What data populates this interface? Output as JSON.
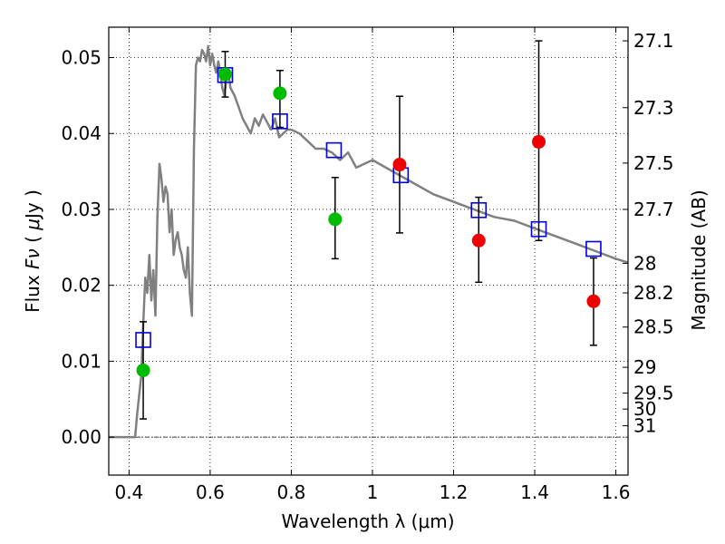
{
  "chart_data": {
    "type": "scatter",
    "xlabel": "Wavelength  λ (μm)",
    "ylabel": "Flux  Fν  ( μJy )",
    "ylabel_right": "Magnitude (AB)",
    "xlim": [
      0.35,
      1.63
    ],
    "ylim": [
      -0.005,
      0.054
    ],
    "x_ticks": [
      {
        "value": 0.4,
        "label": "0.4"
      },
      {
        "value": 0.6,
        "label": "0.6"
      },
      {
        "value": 0.8,
        "label": "0.8"
      },
      {
        "value": 1.0,
        "label": "1"
      },
      {
        "value": 1.2,
        "label": "1.2"
      },
      {
        "value": 1.4,
        "label": "1.4"
      },
      {
        "value": 1.6,
        "label": "1.6"
      }
    ],
    "y_ticks": [
      {
        "value": 0.0,
        "label": "0.00"
      },
      {
        "value": 0.01,
        "label": "0.01"
      },
      {
        "value": 0.02,
        "label": "0.02"
      },
      {
        "value": 0.03,
        "label": "0.03"
      },
      {
        "value": 0.04,
        "label": "0.04"
      },
      {
        "value": 0.05,
        "label": "0.05"
      }
    ],
    "right_ticks": [
      {
        "flux": 0.0522,
        "label": "27.1"
      },
      {
        "flux": 0.0434,
        "label": "27.3"
      },
      {
        "flux": 0.0361,
        "label": "27.5"
      },
      {
        "flux": 0.03,
        "label": "27.7"
      },
      {
        "flux": 0.0229,
        "label": "28"
      },
      {
        "flux": 0.019,
        "label": "28.2"
      },
      {
        "flux": 0.0145,
        "label": "28.5"
      },
      {
        "flux": 0.0092,
        "label": "29"
      },
      {
        "flux": 0.0058,
        "label": "29.5"
      },
      {
        "flux": 0.0037,
        "label": "30"
      },
      {
        "flux": 0.0015,
        "label": "31"
      }
    ],
    "grid": true,
    "colors": {
      "model": "#808080",
      "green": "#00bb00",
      "red": "#ee0000",
      "square": "#0000dd",
      "errorbar": "#000000"
    },
    "series": [
      {
        "kind": "model_sed",
        "x": [
          0.35,
          0.41,
          0.415,
          0.42,
          0.43,
          0.435,
          0.44,
          0.445,
          0.45,
          0.455,
          0.46,
          0.465,
          0.47,
          0.475,
          0.48,
          0.485,
          0.49,
          0.495,
          0.5,
          0.505,
          0.51,
          0.515,
          0.52,
          0.525,
          0.53,
          0.535,
          0.54,
          0.545,
          0.55,
          0.555,
          0.56,
          0.565,
          0.57,
          0.575,
          0.58,
          0.585,
          0.59,
          0.595,
          0.6,
          0.605,
          0.61,
          0.615,
          0.62,
          0.625,
          0.63,
          0.635,
          0.64,
          0.645,
          0.65,
          0.66,
          0.67,
          0.68,
          0.69,
          0.7,
          0.71,
          0.72,
          0.73,
          0.74,
          0.75,
          0.76,
          0.77,
          0.78,
          0.79,
          0.8,
          0.82,
          0.84,
          0.86,
          0.88,
          0.9,
          0.92,
          0.94,
          0.96,
          0.98,
          1.0,
          1.05,
          1.1,
          1.15,
          1.2,
          1.25,
          1.3,
          1.35,
          1.4,
          1.45,
          1.5,
          1.55,
          1.6,
          1.63
        ],
        "y": [
          0.0,
          0.0,
          0.0,
          0.003,
          0.008,
          0.015,
          0.021,
          0.019,
          0.024,
          0.018,
          0.022,
          0.016,
          0.029,
          0.036,
          0.034,
          0.031,
          0.033,
          0.032,
          0.027,
          0.03,
          0.024,
          0.026,
          0.027,
          0.025,
          0.024,
          0.022,
          0.021,
          0.025,
          0.019,
          0.016,
          0.038,
          0.049,
          0.05,
          0.0495,
          0.051,
          0.0505,
          0.0495,
          0.0515,
          0.049,
          0.0505,
          0.049,
          0.048,
          0.0495,
          0.048,
          0.046,
          0.045,
          0.047,
          0.048,
          0.046,
          0.045,
          0.0435,
          0.042,
          0.041,
          0.04,
          0.042,
          0.041,
          0.0425,
          0.0415,
          0.0405,
          0.042,
          0.0395,
          0.04,
          0.0405,
          0.0405,
          0.04,
          0.039,
          0.038,
          0.038,
          0.0375,
          0.0365,
          0.0375,
          0.0355,
          0.036,
          0.0365,
          0.035,
          0.0335,
          0.032,
          0.031,
          0.03,
          0.029,
          0.0285,
          0.0275,
          0.0265,
          0.0255,
          0.0245,
          0.0235,
          0.023
        ]
      },
      {
        "kind": "squares",
        "x": [
          0.435,
          0.637,
          0.772,
          0.905,
          1.07,
          1.262,
          1.41,
          1.545
        ],
        "y": [
          0.0128,
          0.0477,
          0.0416,
          0.0378,
          0.0345,
          0.0299,
          0.0274,
          0.0248
        ]
      },
      {
        "kind": "green_points",
        "x": [
          0.435,
          0.637,
          0.772,
          0.908
        ],
        "y": [
          0.0088,
          0.0478,
          0.0453,
          0.0287
        ],
        "yerr_low": [
          0.0064,
          0.003,
          0.0045,
          0.0052
        ],
        "yerr_high": [
          0.0064,
          0.003,
          0.003,
          0.0055
        ]
      },
      {
        "kind": "red_points",
        "x": [
          1.067,
          1.262,
          1.41,
          1.545
        ],
        "y": [
          0.0359,
          0.0259,
          0.0389,
          0.0179
        ],
        "yerr_low": [
          0.009,
          0.0055,
          0.013,
          0.0058
        ],
        "yerr_high": [
          0.009,
          0.0057,
          0.0133,
          0.0057
        ]
      }
    ]
  }
}
